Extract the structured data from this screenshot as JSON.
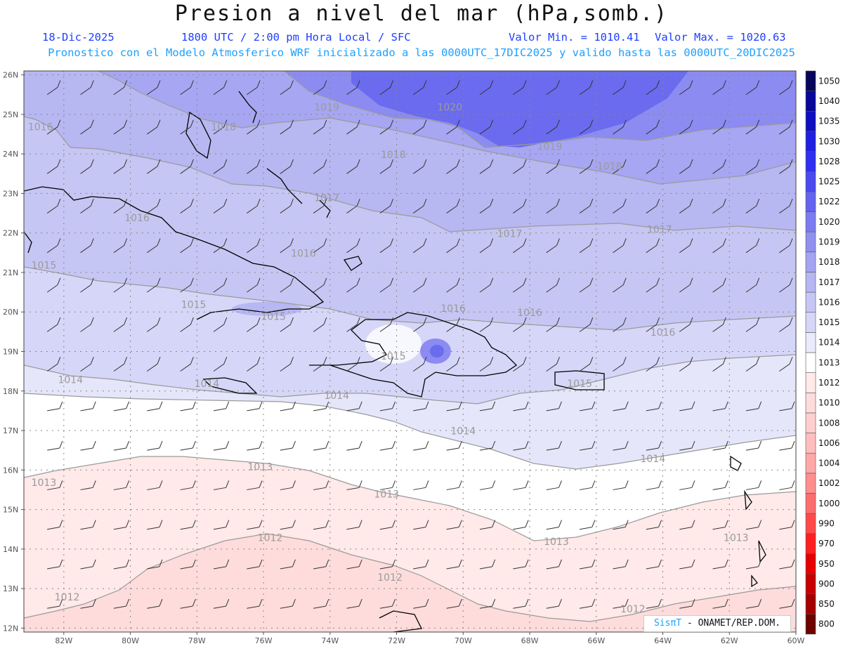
{
  "header": {
    "title": "Presion a nivel del mar (hPa,somb.)",
    "date": "18-Dic-2025",
    "time": "1800 UTC / 2:00 pm Hora Local / SFC",
    "valmin": "Valor Min. = 1010.41",
    "valmax": "Valor Max. = 1020.63",
    "model_line": "Pronostico con el Modelo Atmosferico WRF inicializado a las 0000UTC_17DIC2025 y valido hasta las  0000UTC_20DIC2025"
  },
  "map": {
    "lat_labels": [
      "12N",
      "13N",
      "14N",
      "15N",
      "16N",
      "17N",
      "18N",
      "19N",
      "20N",
      "21N",
      "22N",
      "23N",
      "24N",
      "25N",
      "26N"
    ],
    "lon_labels": [
      "82W",
      "80W",
      "78W",
      "76W",
      "74W",
      "72W",
      "70W",
      "68W",
      "66W",
      "64W",
      "62W",
      "60W"
    ],
    "contour_labels": [
      {
        "text": "1020",
        "lon": -70.4,
        "lat": 25.1
      },
      {
        "text": "1019",
        "lon": -74.1,
        "lat": 25.1
      },
      {
        "text": "1019",
        "lon": -67.4,
        "lat": 24.1
      },
      {
        "text": "1018",
        "lon": -77.2,
        "lat": 24.6
      },
      {
        "text": "1018",
        "lon": -72.1,
        "lat": 23.9
      },
      {
        "text": "1018",
        "lon": -65.6,
        "lat": 23.6
      },
      {
        "text": "1017",
        "lon": -74.1,
        "lat": 22.8
      },
      {
        "text": "1017",
        "lon": -68.6,
        "lat": 21.9
      },
      {
        "text": "1017",
        "lon": -64.1,
        "lat": 22.0
      },
      {
        "text": "1016",
        "lon": -82.7,
        "lat": 24.6
      },
      {
        "text": "1016",
        "lon": -79.8,
        "lat": 22.3
      },
      {
        "text": "1016",
        "lon": -74.8,
        "lat": 21.4
      },
      {
        "text": "1016",
        "lon": -70.3,
        "lat": 20.0
      },
      {
        "text": "1016",
        "lon": -68.0,
        "lat": 19.9
      },
      {
        "text": "1016",
        "lon": -64.0,
        "lat": 19.4
      },
      {
        "text": "1015",
        "lon": -82.6,
        "lat": 21.1
      },
      {
        "text": "1015",
        "lon": -78.1,
        "lat": 20.1
      },
      {
        "text": "1015",
        "lon": -75.7,
        "lat": 19.8
      },
      {
        "text": "1015",
        "lon": -72.1,
        "lat": 18.8
      },
      {
        "text": "1015",
        "lon": -66.5,
        "lat": 18.1
      },
      {
        "text": "1014",
        "lon": -81.8,
        "lat": 18.2
      },
      {
        "text": "1014",
        "lon": -77.7,
        "lat": 18.1
      },
      {
        "text": "1014",
        "lon": -73.8,
        "lat": 17.8
      },
      {
        "text": "1014",
        "lon": -70.0,
        "lat": 16.9
      },
      {
        "text": "1014",
        "lon": -64.3,
        "lat": 16.2
      },
      {
        "text": "1013",
        "lon": -82.6,
        "lat": 15.6
      },
      {
        "text": "1013",
        "lon": -76.1,
        "lat": 16.0
      },
      {
        "text": "1013",
        "lon": -72.3,
        "lat": 15.3
      },
      {
        "text": "1013",
        "lon": -67.2,
        "lat": 14.1
      },
      {
        "text": "1013",
        "lon": -61.8,
        "lat": 14.2
      },
      {
        "text": "1012",
        "lon": -75.8,
        "lat": 14.2
      },
      {
        "text": "1012",
        "lon": -72.2,
        "lat": 13.2
      },
      {
        "text": "1012",
        "lon": -81.9,
        "lat": 12.7
      },
      {
        "text": "1012",
        "lon": -64.9,
        "lat": 12.4
      }
    ]
  },
  "colorbar": {
    "levels": [
      "800",
      "850",
      "900",
      "950",
      "970",
      "990",
      "1000",
      "1002",
      "1004",
      "1006",
      "1008",
      "1010",
      "1012",
      "1013",
      "1014",
      "1015",
      "1016",
      "1017",
      "1018",
      "1019",
      "1020",
      "1022",
      "1025",
      "1028",
      "1030",
      "1035",
      "1040",
      "1050"
    ],
    "colors": [
      "#6e0000",
      "#a50000",
      "#c80000",
      "#e60000",
      "#ff2020",
      "#ff4a4a",
      "#ff6e6e",
      "#ff8e8e",
      "#ffa8a8",
      "#ffbebe",
      "#ffcfcf",
      "#ffdcdc",
      "#ffe9e9",
      "#ffffff",
      "#eaeafd",
      "#d6d6f8",
      "#c6c6f4",
      "#b6b6f2",
      "#a4a4f2",
      "#9090f0",
      "#7c7cf0",
      "#6464ef",
      "#4a4aef",
      "#3030f0",
      "#2020e0",
      "#1010c0",
      "#08089a",
      "#06065a"
    ]
  },
  "credit": {
    "brand": "SisπT",
    "org": "- ONAMET/REP.DOM."
  }
}
